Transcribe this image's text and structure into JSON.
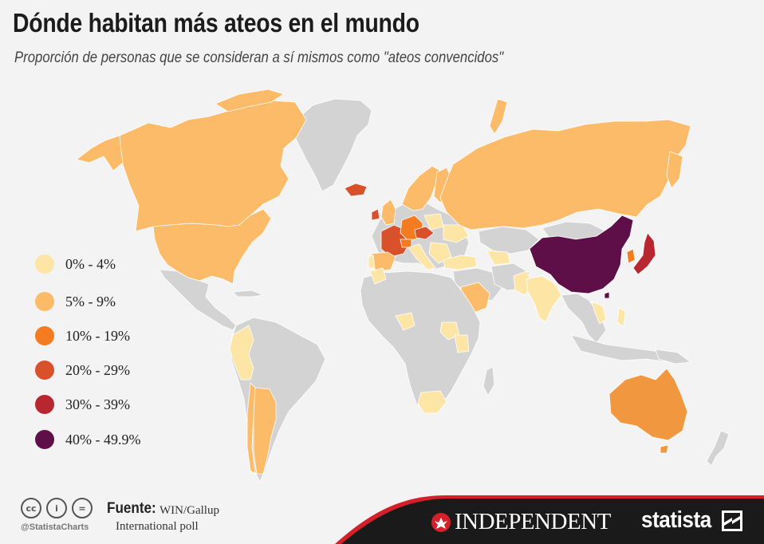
{
  "title": "Dónde habitan más ateos en el mundo",
  "subtitle": "Proporción de personas que se consideran a sí mismos como \"ateos convencidos\"",
  "legend": [
    {
      "label": "0% - 4%",
      "color": "#fde5a6"
    },
    {
      "label": "5% - 9%",
      "color": "#fbbb68"
    },
    {
      "label": "10% - 19%",
      "color": "#f47b20"
    },
    {
      "label": "20% - 29%",
      "color": "#d9512b"
    },
    {
      "label": "30% - 39%",
      "color": "#b8262f"
    },
    {
      "label": "40% - 49.9%",
      "color": "#5e0f47"
    }
  ],
  "colors": {
    "no_data": "#d3d3d3",
    "band_0_4": "#fde5a6",
    "band_5_9": "#fbbb68",
    "australia": "#f0973f",
    "band_10_19": "#f47b20",
    "band_20_29": "#d9512b",
    "band_30_39": "#b8262f",
    "band_40_49": "#5e0f47",
    "footer_dark": "#1a1a1a",
    "footer_red": "#d4202a"
  },
  "footer": {
    "source_label": "Fuente:",
    "source_value": "WIN/Gallup",
    "source_value_2": "International poll",
    "handle": "@StatistaCharts",
    "cc_icons": [
      "cc-icon",
      "by-icon",
      "nd-icon"
    ],
    "cc_glyphs": [
      "cc",
      "i",
      "="
    ],
    "partner": "INDEPENDENT",
    "brand": "statista"
  }
}
